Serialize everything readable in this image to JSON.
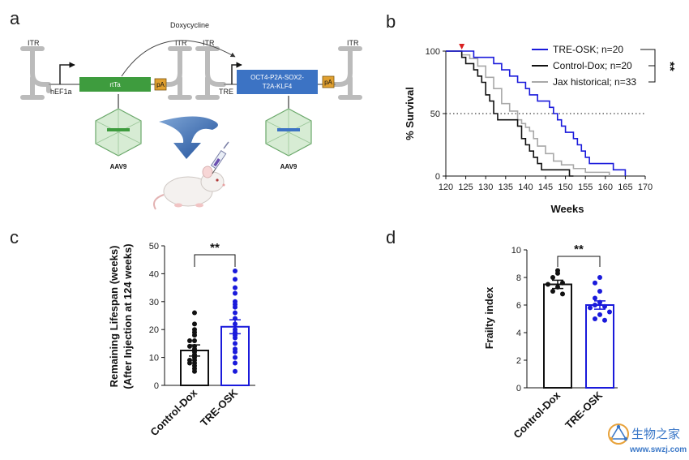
{
  "panel_labels": {
    "a": "a",
    "b": "b",
    "c": "c",
    "d": "d"
  },
  "panel_a": {
    "itr": "ITR",
    "promoter_1": "hEF1a",
    "gene_1": "rtTa",
    "pa": "pA",
    "inducer": "Doxycycline",
    "promoter_2": "TRE",
    "gene_2_line1": "OCT4-P2A-SOX2-",
    "gene_2_line2": "T2A-KLF4",
    "vector_label": "AAV9"
  },
  "watermark": {
    "cn": "生物之家",
    "url": "www.swzj.com"
  },
  "colors": {
    "tre_osk": "#1a1adb",
    "control": "#111111",
    "jax": "#a8a8a8",
    "rtta_box": "#3e9c3e",
    "osk_box": "#3c73c4",
    "pa_box": "#e0a030",
    "arrow_red": "#d92020",
    "watermark": "#3b78c8"
  },
  "chart_data": [
    {
      "panel": "b",
      "type": "line",
      "xlabel": "Weeks",
      "ylabel": "% Survival",
      "xlim": [
        120,
        170
      ],
      "ylim": [
        0,
        100
      ],
      "xticks": [
        120,
        125,
        130,
        135,
        140,
        145,
        150,
        155,
        160,
        165,
        170
      ],
      "yticks": [
        0,
        50,
        100
      ],
      "reference_line": {
        "y": 50,
        "style": "dotted"
      },
      "injection_marker_week": 124,
      "significance": "**",
      "legend_position": "top-right",
      "series": [
        {
          "name": "TRE-OSK; n=20",
          "color": "#1a1adb",
          "step": true,
          "x": [
            120,
            127,
            132,
            134,
            136,
            138,
            140,
            141,
            143,
            146,
            147,
            148,
            149,
            150,
            152,
            153,
            154,
            155,
            156,
            162,
            165
          ],
          "y": [
            100,
            95,
            90,
            85,
            80,
            75,
            70,
            65,
            60,
            55,
            50,
            45,
            40,
            35,
            30,
            25,
            20,
            15,
            10,
            5,
            0
          ]
        },
        {
          "name": "Control-Dox; n=20",
          "color": "#111111",
          "step": true,
          "x": [
            120,
            124,
            125,
            127,
            128,
            129,
            130,
            131,
            132,
            133,
            138,
            139,
            140,
            141,
            142,
            143,
            144,
            151,
            152
          ],
          "y": [
            100,
            95,
            90,
            85,
            80,
            75,
            65,
            60,
            50,
            45,
            40,
            30,
            25,
            20,
            15,
            10,
            5,
            0,
            0
          ]
        },
        {
          "name": "Jax historical; n=33",
          "color": "#a8a8a8",
          "step": true,
          "x": [
            120,
            124,
            126,
            128,
            130,
            132,
            134,
            136,
            138,
            139,
            140,
            141,
            142,
            143,
            145,
            147,
            149,
            152,
            155,
            158,
            161
          ],
          "y": [
            100,
            97,
            94,
            88,
            79,
            70,
            58,
            52,
            45,
            42,
            39,
            36,
            30,
            24,
            18,
            12,
            9,
            6,
            3,
            3,
            0
          ]
        }
      ]
    },
    {
      "panel": "c",
      "type": "bar",
      "ylabel_line1": "Remaining Lifespan (weeks)",
      "ylabel_line2": "(After Injection at 124 weeks)",
      "ylim": [
        0,
        50
      ],
      "yticks": [
        0,
        10,
        20,
        30,
        40,
        50
      ],
      "categories": [
        "Control-Dox",
        "TRE-OSK"
      ],
      "means": [
        12.5,
        21
      ],
      "sem": [
        2,
        2.5
      ],
      "colors": [
        "#111111",
        "#1a1adb"
      ],
      "points": [
        [
          26,
          22,
          20,
          19,
          18,
          16,
          16,
          14,
          14,
          13,
          12,
          11,
          10,
          9,
          9,
          8,
          8,
          7,
          6,
          5
        ],
        [
          41,
          38,
          35,
          33,
          30,
          29,
          28,
          26,
          24,
          22,
          20,
          19,
          18,
          17,
          15,
          13,
          12,
          10,
          8,
          5
        ]
      ],
      "significance": "**"
    },
    {
      "panel": "d",
      "type": "bar",
      "ylabel": "Frailty index",
      "ylim": [
        0,
        10
      ],
      "yticks": [
        0,
        2,
        4,
        6,
        8,
        10
      ],
      "categories": [
        "Control-Dox",
        "TRE-OSK"
      ],
      "means": [
        7.5,
        6.0
      ],
      "sem": [
        0.3,
        0.3
      ],
      "colors": [
        "#111111",
        "#1a1adb"
      ],
      "points": [
        [
          8.5,
          8.3,
          8.0,
          7.6,
          7.5,
          7.3,
          7.0,
          6.8
        ],
        [
          8.0,
          7.6,
          7.0,
          6.5,
          6.2,
          6.0,
          5.9,
          5.8,
          5.5,
          5.3,
          5.0,
          4.9
        ]
      ],
      "significance": "**"
    }
  ]
}
